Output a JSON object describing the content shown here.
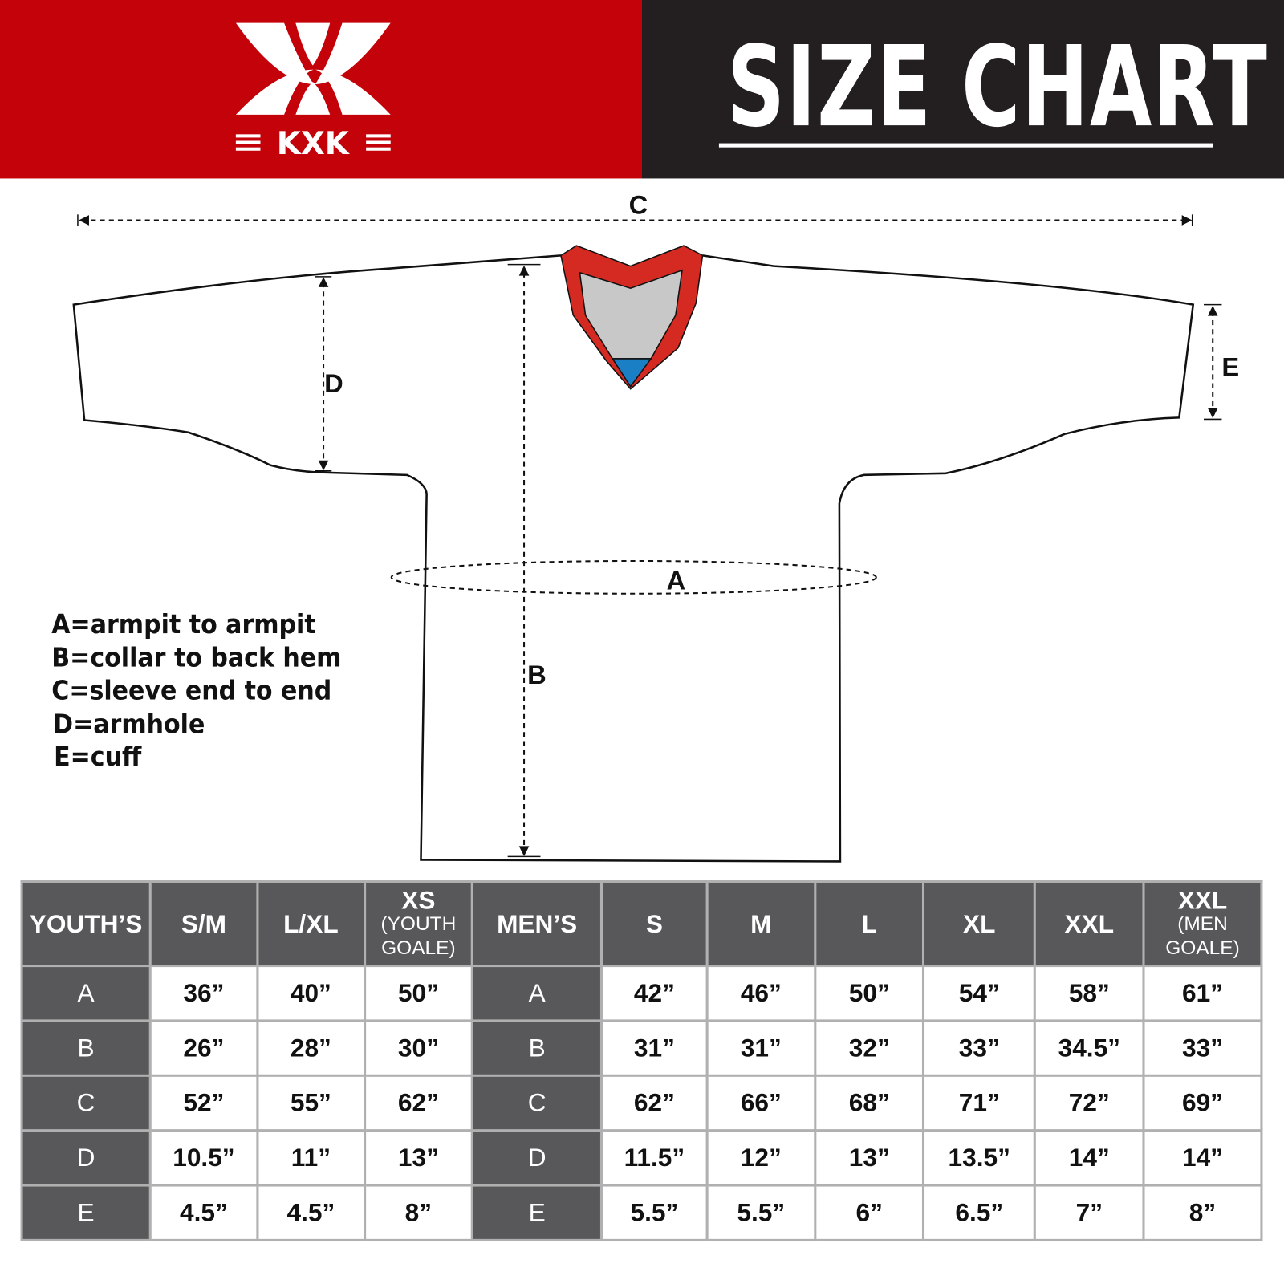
{
  "header": {
    "brand": "KXK",
    "title": "SIZE CHART",
    "colors": {
      "brand_red": "#c4020a",
      "dark": "#231f20",
      "table_header": "#58585a"
    }
  },
  "diagram": {
    "labels": {
      "a": "A",
      "b": "B",
      "c": "C",
      "d": "D",
      "e": "E"
    },
    "collar_colors": {
      "trim": "#d42a22",
      "inner": "#c8c8c8",
      "accent": "#1a7fc4"
    }
  },
  "legend": [
    "A=armpit to armpit",
    "B=collar to back hem",
    "C=sleeve end to end",
    "D=armhole",
    "E=cuff"
  ],
  "table": {
    "headers": [
      {
        "main": "YOUTH’S",
        "sub": ""
      },
      {
        "main": "S/M",
        "sub": ""
      },
      {
        "main": "L/XL",
        "sub": ""
      },
      {
        "main": "XS",
        "sub": "(YOUTH GOALE)"
      },
      {
        "main": "MEN’S",
        "sub": ""
      },
      {
        "main": "S",
        "sub": ""
      },
      {
        "main": "M",
        "sub": ""
      },
      {
        "main": "L",
        "sub": ""
      },
      {
        "main": "XL",
        "sub": ""
      },
      {
        "main": "XXL",
        "sub": ""
      },
      {
        "main": "XXL",
        "sub": "(MEN GOALE)"
      }
    ],
    "rows": [
      [
        "A",
        "36”",
        "40”",
        "50”",
        "A",
        "42”",
        "46”",
        "50”",
        "54”",
        "58”",
        "61”"
      ],
      [
        "B",
        "26”",
        "28”",
        "30”",
        "B",
        "31”",
        "31”",
        "32”",
        "33”",
        "34.5”",
        "33”"
      ],
      [
        "C",
        "52”",
        "55”",
        "62”",
        "C",
        "62”",
        "66”",
        "68”",
        "71”",
        "72”",
        "69”"
      ],
      [
        "D",
        "10.5”",
        "11”",
        "13”",
        "D",
        "11.5”",
        "12”",
        "13”",
        "13.5”",
        "14”",
        "14”"
      ],
      [
        "E",
        "4.5”",
        "4.5”",
        "8”",
        "E",
        "5.5”",
        "5.5”",
        "6”",
        "6.5”",
        "7”",
        "8”"
      ]
    ]
  }
}
